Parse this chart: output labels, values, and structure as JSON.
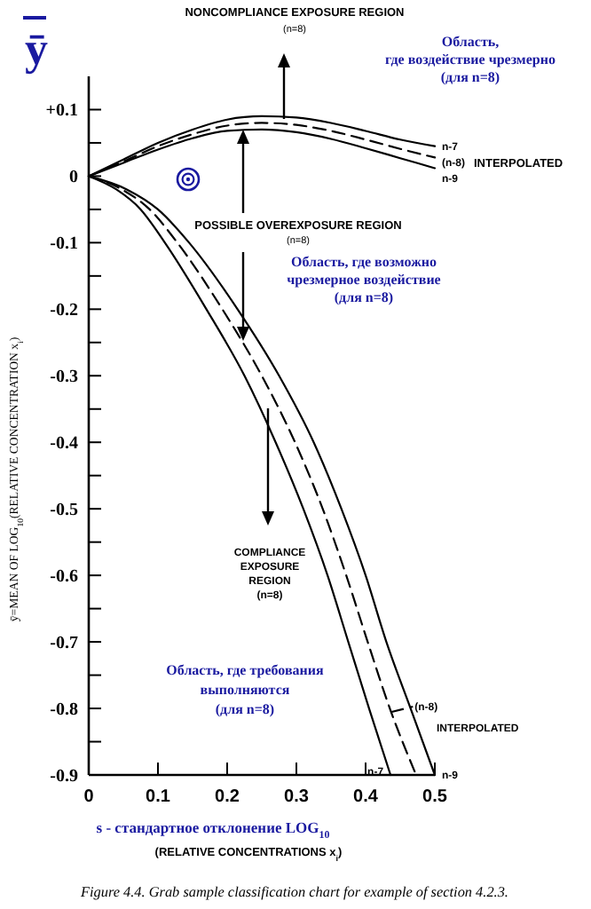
{
  "chart_data": {
    "type": "line",
    "xlabel": "s - стандартное отклонение LOG$_{10}$\n(RELATIVE CONCENTRATIONS x$_{i}$)",
    "ylabel": "ȳ=MEAN OF LOG$_{10}$(RELATIVE CONCENTRATION x$_{i}$)",
    "xlim": [
      0,
      0.5
    ],
    "ylim": [
      -0.9,
      0.15
    ],
    "xticks": [
      0,
      0.1,
      0.2,
      0.3,
      0.4,
      0.5
    ],
    "yticks": [
      {
        "value": 0.1,
        "label": "+0.1"
      },
      {
        "value": 0.05,
        "label": null
      },
      0,
      {
        "value": -0.05,
        "label": null
      },
      -0.1,
      {
        "value": -0.15,
        "label": null
      },
      -0.2,
      {
        "value": -0.25,
        "label": null
      },
      -0.3,
      {
        "value": -0.35,
        "label": null
      },
      -0.4,
      {
        "value": -0.45,
        "label": null
      },
      -0.5,
      {
        "value": -0.55,
        "label": null
      },
      -0.6,
      {
        "value": -0.65,
        "label": null
      },
      -0.7,
      {
        "value": -0.75,
        "label": null
      },
      -0.8,
      {
        "value": -0.85,
        "label": null
      },
      -0.9
    ],
    "grid": false,
    "series": [
      {
        "name": "n-7",
        "color": "#000000",
        "line_style": "solid",
        "x": [
          0,
          0.05,
          0.1,
          0.15,
          0.2,
          0.25,
          0.3,
          0.35,
          0.4,
          0.45,
          0.5
        ],
        "values": [
          0,
          0.025,
          0.05,
          0.07,
          0.085,
          0.09,
          0.088,
          0.08,
          0.068,
          0.055,
          0.045
        ]
      },
      {
        "name": "(n-8)",
        "color": "#000000",
        "line_style": "dashed",
        "x": [
          0,
          0.05,
          0.1,
          0.15,
          0.2,
          0.25,
          0.3,
          0.35,
          0.4,
          0.45,
          0.5
        ],
        "values": [
          0,
          0.022,
          0.045,
          0.063,
          0.076,
          0.08,
          0.077,
          0.068,
          0.055,
          0.041,
          0.028
        ]
      },
      {
        "name": "n-9",
        "color": "#000000",
        "line_style": "solid",
        "x": [
          0,
          0.05,
          0.1,
          0.15,
          0.2,
          0.25,
          0.3,
          0.35,
          0.4,
          0.45,
          0.5
        ],
        "values": [
          0,
          0.02,
          0.04,
          0.057,
          0.068,
          0.07,
          0.066,
          0.056,
          0.042,
          0.027,
          0.012
        ]
      },
      {
        "name": "n-7",
        "color": "#000000",
        "line_style": "solid",
        "x": [
          0,
          0.04,
          0.075,
          0.11,
          0.17,
          0.225,
          0.27,
          0.31,
          0.345,
          0.375,
          0.405,
          0.436
        ],
        "values": [
          0,
          -0.02,
          -0.05,
          -0.1,
          -0.2,
          -0.3,
          -0.4,
          -0.5,
          -0.6,
          -0.7,
          -0.8,
          -0.9
        ]
      },
      {
        "name": "(n-8)",
        "color": "#000000",
        "line_style": "dashed",
        "x": [
          0,
          0.048,
          0.088,
          0.128,
          0.193,
          0.25,
          0.298,
          0.338,
          0.372,
          0.403,
          0.435,
          0.473
        ],
        "values": [
          0,
          -0.02,
          -0.05,
          -0.1,
          -0.2,
          -0.3,
          -0.4,
          -0.5,
          -0.6,
          -0.7,
          -0.8,
          -0.9
        ]
      },
      {
        "name": "n-9",
        "color": "#000000",
        "line_style": "solid",
        "x": [
          0,
          0.055,
          0.1,
          0.145,
          0.215,
          0.275,
          0.325,
          0.365,
          0.4,
          0.43,
          0.465,
          0.5
        ],
        "values": [
          0,
          -0.02,
          -0.05,
          -0.1,
          -0.2,
          -0.3,
          -0.4,
          -0.5,
          -0.6,
          -0.7,
          -0.8,
          -0.9
        ]
      }
    ],
    "annotations": [
      "ȳ",
      "NONCOMPLIANCE EXPOSURE REGION",
      "(n=8)",
      "Область,\nгде воздействие чрезмерно\n(для n=8)",
      "POSSIBLE OVEREXPOSURE REGION",
      "(n=8)",
      "Область, где возможно\nчрезмерное воздействие\n(для n=8)",
      "COMPLIANCE\nEXPOSURE\nREGION\n(n=8)",
      "Область, где требования\nвыполняются\n(для n=8)",
      "INTERPOLATED",
      "INTERPOLATED",
      "Figure 4.4. Grab sample classification chart for example of section 4.2.3."
    ]
  }
}
